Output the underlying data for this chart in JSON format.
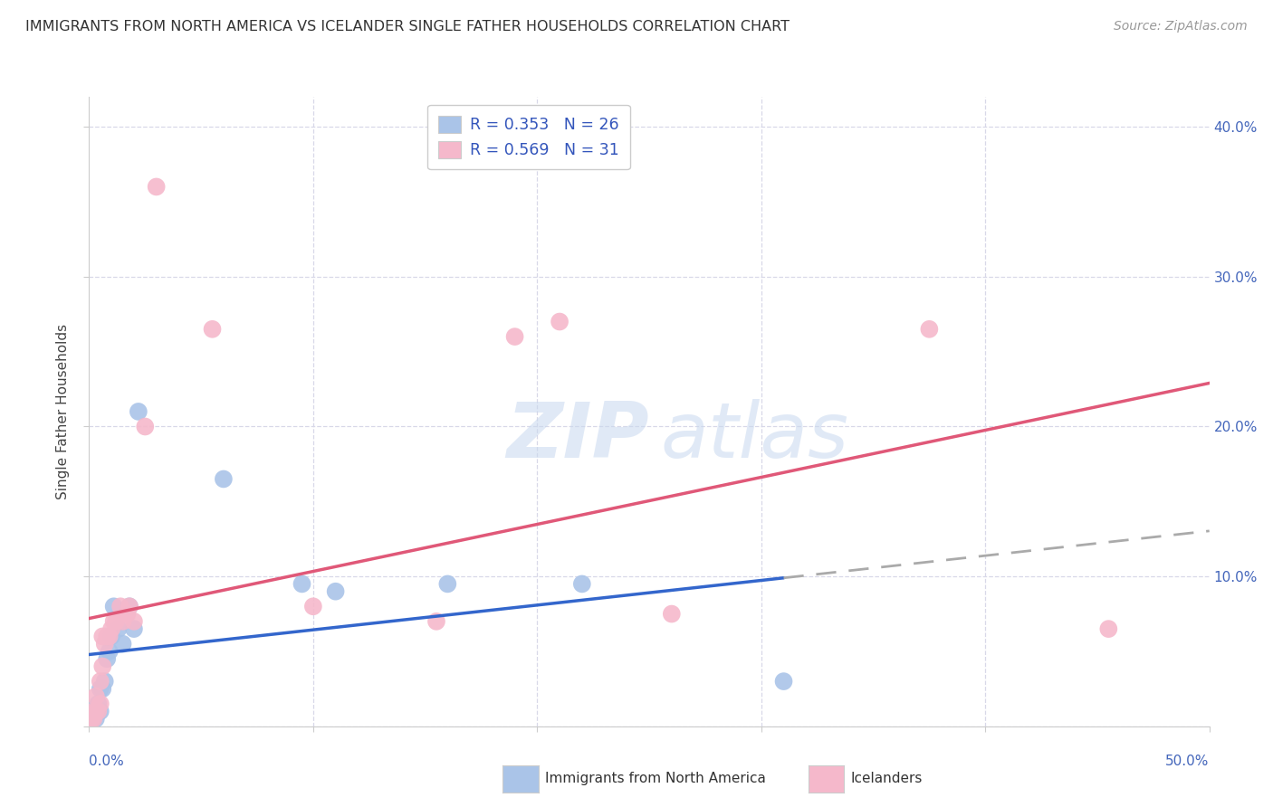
{
  "title": "IMMIGRANTS FROM NORTH AMERICA VS ICELANDER SINGLE FATHER HOUSEHOLDS CORRELATION CHART",
  "source": "Source: ZipAtlas.com",
  "ylabel": "Single Father Households",
  "legend_blue_r": "R = 0.353",
  "legend_blue_n": "N = 26",
  "legend_pink_r": "R = 0.569",
  "legend_pink_n": "N = 31",
  "blue_color": "#aac4e8",
  "pink_color": "#f5b8cb",
  "blue_line_color": "#3366cc",
  "pink_line_color": "#e05878",
  "blue_scatter_x": [
    0.001,
    0.002,
    0.002,
    0.003,
    0.003,
    0.004,
    0.004,
    0.005,
    0.005,
    0.006,
    0.007,
    0.008,
    0.009,
    0.01,
    0.011,
    0.013,
    0.015,
    0.018,
    0.02,
    0.022,
    0.06,
    0.095,
    0.11,
    0.16,
    0.22,
    0.31
  ],
  "blue_scatter_y": [
    0.005,
    0.005,
    0.01,
    0.005,
    0.01,
    0.01,
    0.015,
    0.01,
    0.025,
    0.025,
    0.03,
    0.045,
    0.05,
    0.06,
    0.08,
    0.065,
    0.055,
    0.08,
    0.065,
    0.21,
    0.165,
    0.095,
    0.09,
    0.095,
    0.095,
    0.03
  ],
  "pink_scatter_x": [
    0.001,
    0.002,
    0.002,
    0.003,
    0.003,
    0.004,
    0.005,
    0.005,
    0.006,
    0.006,
    0.007,
    0.008,
    0.009,
    0.01,
    0.011,
    0.012,
    0.014,
    0.015,
    0.017,
    0.018,
    0.02,
    0.025,
    0.03,
    0.055,
    0.1,
    0.155,
    0.19,
    0.21,
    0.26,
    0.375,
    0.455
  ],
  "pink_scatter_y": [
    0.005,
    0.005,
    0.01,
    0.01,
    0.02,
    0.01,
    0.015,
    0.03,
    0.04,
    0.06,
    0.055,
    0.06,
    0.06,
    0.065,
    0.07,
    0.07,
    0.08,
    0.07,
    0.075,
    0.08,
    0.07,
    0.2,
    0.36,
    0.265,
    0.08,
    0.07,
    0.26,
    0.27,
    0.075,
    0.265,
    0.065
  ],
  "xlim": [
    0.0,
    0.5
  ],
  "ylim": [
    0.0,
    0.42
  ],
  "yticks": [
    0.0,
    0.1,
    0.2,
    0.3,
    0.4
  ],
  "xticks": [
    0.0,
    0.1,
    0.2,
    0.3,
    0.4,
    0.5
  ],
  "grid_color": "#d8d8e8",
  "background_color": "#ffffff",
  "watermark_zip_color": "#c8d8ef",
  "watermark_atlas_color": "#c8d8ef"
}
